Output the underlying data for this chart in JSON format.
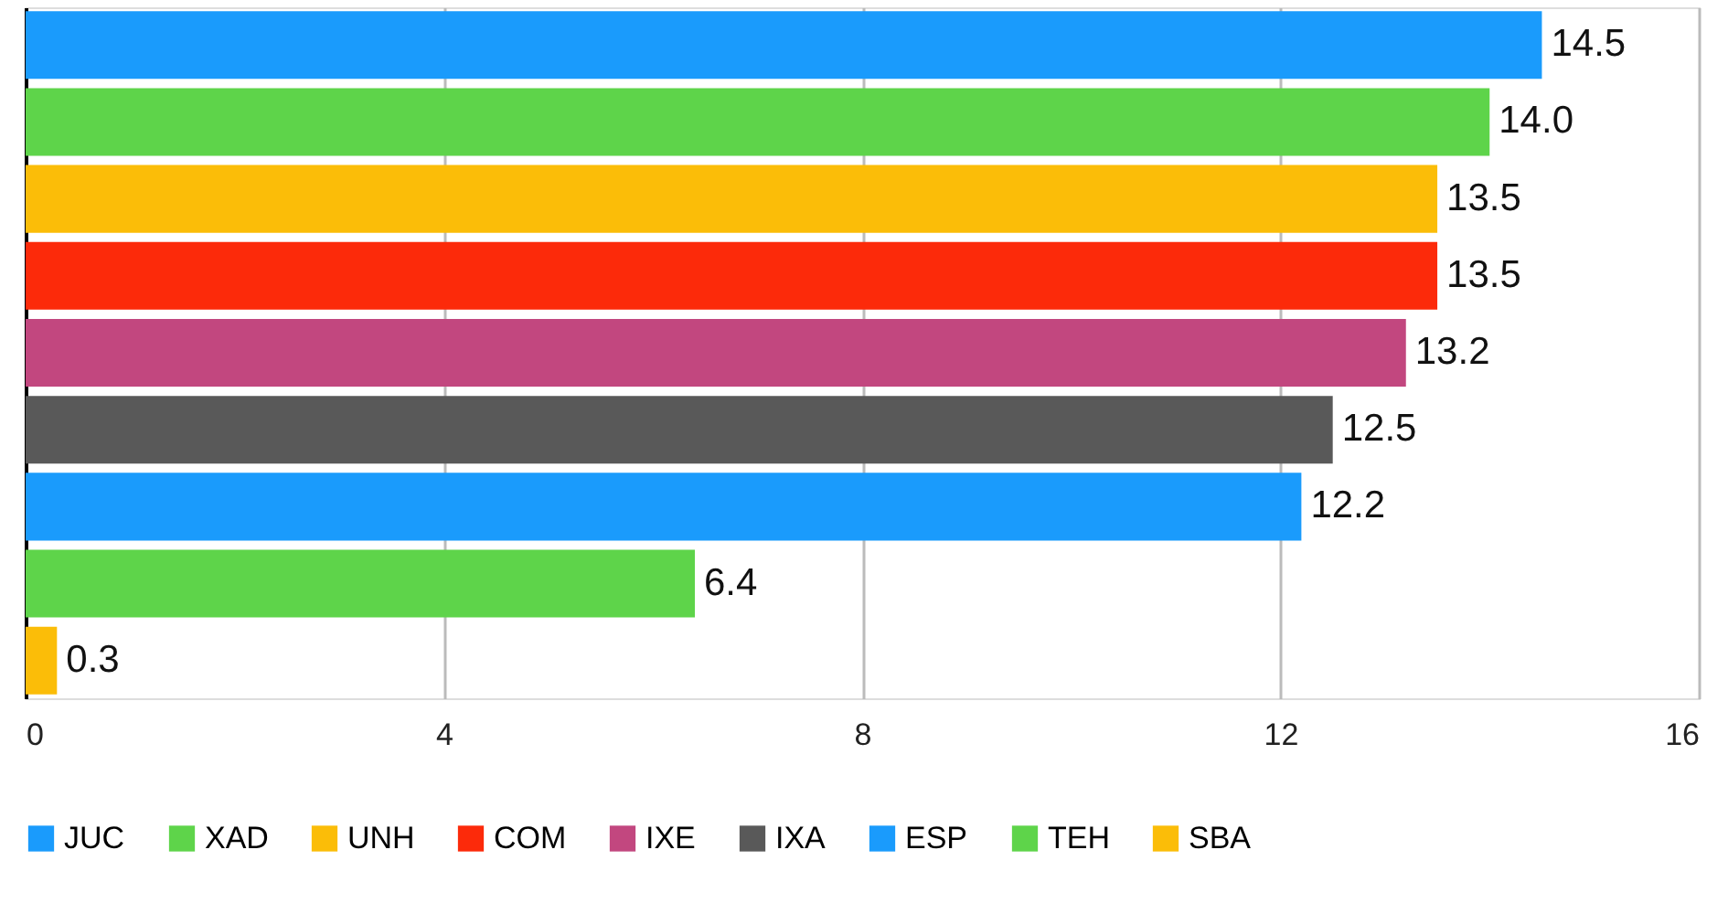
{
  "chart_data": {
    "type": "bar",
    "orientation": "horizontal",
    "categories": [
      null,
      null,
      null,
      null,
      null,
      null,
      null,
      null,
      null
    ],
    "series": [
      {
        "name": "JUC",
        "color": "#1a9bfc",
        "values": [
          14.5,
          null,
          null,
          null,
          null,
          null,
          null,
          null,
          null
        ],
        "value_labels": [
          "14.5",
          null,
          null,
          null,
          null,
          null,
          null,
          null,
          null
        ]
      },
      {
        "name": "XAD",
        "color": "#5ed44a",
        "values": [
          null,
          14.0,
          null,
          null,
          null,
          null,
          null,
          null,
          null
        ],
        "value_labels": [
          null,
          "14.0",
          null,
          null,
          null,
          null,
          null,
          null,
          null
        ]
      },
      {
        "name": "UNH",
        "color": "#fbbd08",
        "values": [
          null,
          null,
          13.5,
          null,
          null,
          null,
          null,
          null,
          null
        ],
        "value_labels": [
          null,
          null,
          "13.5",
          null,
          null,
          null,
          null,
          null,
          null
        ]
      },
      {
        "name": "COM",
        "color": "#fc2a0a",
        "values": [
          null,
          null,
          null,
          13.5,
          null,
          null,
          null,
          null,
          null
        ],
        "value_labels": [
          null,
          null,
          null,
          "13.5",
          null,
          null,
          null,
          null,
          null
        ]
      },
      {
        "name": "IXE",
        "color": "#c2477f",
        "values": [
          null,
          null,
          null,
          null,
          13.2,
          null,
          null,
          null,
          null
        ],
        "value_labels": [
          null,
          null,
          null,
          null,
          "13.2",
          null,
          null,
          null,
          null
        ]
      },
      {
        "name": "IXA",
        "color": "#595959",
        "values": [
          null,
          null,
          null,
          null,
          null,
          12.5,
          null,
          null,
          null
        ],
        "value_labels": [
          null,
          null,
          null,
          null,
          null,
          "12.5",
          null,
          null,
          null
        ]
      },
      {
        "name": "ESP",
        "color": "#1a9bfc",
        "values": [
          null,
          null,
          null,
          null,
          null,
          null,
          12.2,
          null,
          null
        ],
        "value_labels": [
          null,
          null,
          null,
          null,
          null,
          null,
          "12.2",
          null,
          null
        ]
      },
      {
        "name": "TEH",
        "color": "#5ed44a",
        "values": [
          null,
          null,
          null,
          null,
          null,
          null,
          null,
          6.4,
          null
        ],
        "value_labels": [
          null,
          null,
          null,
          null,
          null,
          null,
          null,
          "6.4",
          null
        ]
      },
      {
        "name": "SBA",
        "color": "#fbbd08",
        "values": [
          null,
          null,
          null,
          null,
          null,
          null,
          null,
          null,
          0.3
        ],
        "value_labels": [
          null,
          null,
          null,
          null,
          null,
          null,
          null,
          null,
          "0.3"
        ]
      }
    ],
    "xlim": [
      0,
      16
    ],
    "xticks": [
      0,
      4,
      8,
      12,
      16
    ],
    "grid": "x",
    "legend": "bottom",
    "tick_labels": "x"
  }
}
